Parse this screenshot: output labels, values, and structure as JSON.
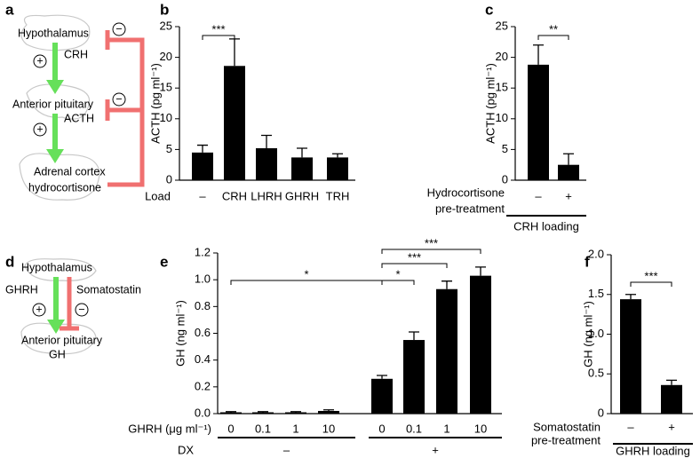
{
  "panel_labels": [
    "a",
    "b",
    "c",
    "d",
    "e",
    "f"
  ],
  "diagrams": [
    {
      "labels": [
        "Hypothalamus",
        "CRH",
        "Anterior pituitary",
        "ACTH",
        "Adrenal cortex",
        "hydrocortisone"
      ],
      "signs": [
        "+",
        "+",
        "−",
        "−"
      ]
    },
    {
      "labels": [
        "Hypothalamus",
        "GHRH",
        "Somatostatin",
        "Anterior pituitary",
        "GH"
      ],
      "signs": [
        "+",
        "−"
      ]
    }
  ],
  "chart_data": [
    {
      "type": "bar",
      "y_label": "ACTH (pg ml⁻¹)",
      "x_row_label": [
        "Load"
      ],
      "categories": [
        "–",
        "CRH",
        "LHRH",
        "GHRH",
        "TRH"
      ],
      "values": [
        4.5,
        18.6,
        5.2,
        3.7,
        3.7
      ],
      "errors": [
        1.2,
        4.4,
        2.1,
        1.5,
        0.6
      ],
      "color": "#000000",
      "ylim": [
        0,
        25
      ],
      "yticks": [
        0,
        5,
        10,
        15,
        20,
        25
      ],
      "significance": [
        "***"
      ]
    },
    {
      "type": "bar",
      "y_label": "ACTH (pg ml⁻¹)",
      "x_row_label": [
        "Hydrocortisone",
        "pre-treatment"
      ],
      "categories": [
        "–",
        "+"
      ],
      "values": [
        18.8,
        2.5
      ],
      "errors": [
        3.2,
        1.8
      ],
      "groups": [
        "CRH loading"
      ],
      "color": "#000000",
      "ylim": [
        0,
        25
      ],
      "yticks": [
        0,
        5,
        10,
        15,
        20,
        25
      ],
      "significance": [
        "**"
      ]
    },
    {
      "type": "bar",
      "y_label": "GH (ng ml⁻¹)",
      "x_row_label": [
        "GHRH (μg ml⁻¹)"
      ],
      "categories": [
        "0",
        "0.1",
        "1",
        "10",
        "0",
        "0.1",
        "1",
        "10"
      ],
      "values": [
        0.01,
        0.01,
        0.01,
        0.02,
        0.26,
        0.55,
        0.93,
        1.03
      ],
      "errors": [
        0.005,
        0.005,
        0.005,
        0.008,
        0.025,
        0.06,
        0.06,
        0.065
      ],
      "group_row_label": "DX",
      "groups": [
        "–",
        "+"
      ],
      "color": "#000000",
      "ylim": [
        0,
        1.2
      ],
      "yticks": [
        {
          "value": 0,
          "label": "0.0"
        },
        0.2,
        0.4,
        0.6,
        0.8,
        {
          "value": 1,
          "label": "1.0"
        },
        1.2
      ],
      "significance": [
        "*",
        "*",
        "***",
        "***"
      ]
    },
    {
      "type": "bar",
      "y_label": "GH (ng ml⁻¹)",
      "x_row_label": [
        "Somatostatin",
        "pre-treatment"
      ],
      "categories": [
        "–",
        "+"
      ],
      "values": [
        1.44,
        0.36
      ],
      "errors": [
        0.06,
        0.06
      ],
      "groups": [
        "GHRH loading"
      ],
      "color": "#000000",
      "ylim": [
        0,
        2
      ],
      "yticks": [
        0,
        0.5,
        {
          "value": 1,
          "label": "1.0"
        },
        1.5,
        {
          "value": 2,
          "label": "2.0"
        }
      ],
      "significance": [
        "***"
      ]
    }
  ]
}
